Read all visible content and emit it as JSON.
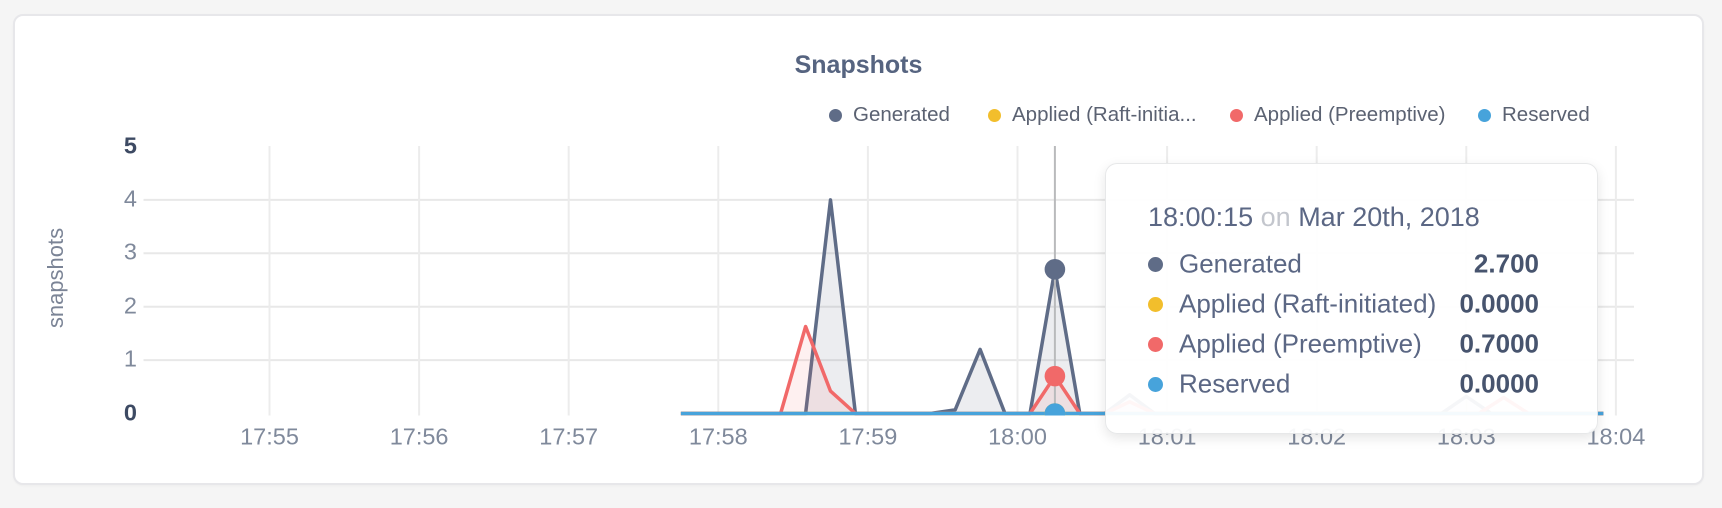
{
  "page": {
    "background": "#f5f5f5"
  },
  "card": {
    "background": "#ffffff",
    "border_color": "#e7e7ea"
  },
  "chart_data": {
    "type": "area",
    "title": "Snapshots",
    "ylabel": "snapshots",
    "xlabel": "",
    "ylim": [
      0,
      5
    ],
    "y_ticks": [
      0,
      1,
      2,
      3,
      4,
      5
    ],
    "x_ticks": [
      {
        "label": "17:55",
        "minute": 0
      },
      {
        "label": "17:56",
        "minute": 1
      },
      {
        "label": "17:57",
        "minute": 2
      },
      {
        "label": "17:58",
        "minute": 3
      },
      {
        "label": "17:59",
        "minute": 4
      },
      {
        "label": "18:00",
        "minute": 5
      },
      {
        "label": "18:01",
        "minute": 6
      },
      {
        "label": "18:02",
        "minute": 7
      },
      {
        "label": "18:03",
        "minute": 8
      },
      {
        "label": "18:04",
        "minute": 9
      }
    ],
    "grid": true,
    "legend_position": "top-right",
    "series": [
      {
        "name": "Generated",
        "legend_label": "Generated",
        "color": "#5F6C87",
        "fill_opacity": 0.12,
        "points": [
          [
            165,
            0
          ],
          [
            215,
            0
          ],
          [
            225,
            4
          ],
          [
            235,
            0
          ],
          [
            265,
            0
          ],
          [
            275,
            0.07
          ],
          [
            285,
            1.2
          ],
          [
            295,
            0
          ],
          [
            305,
            0
          ],
          [
            315,
            2.7
          ],
          [
            325,
            0
          ],
          [
            335,
            0
          ],
          [
            345,
            0.35
          ],
          [
            355,
            0
          ],
          [
            470,
            0
          ],
          [
            480,
            0.32
          ],
          [
            490,
            0
          ],
          [
            535,
            0
          ]
        ]
      },
      {
        "name": "Applied (Raft-initiated)",
        "legend_label": "Applied (Raft-initia...",
        "color": "#F2BE2C",
        "fill_opacity": 0.1,
        "points": [
          [
            165,
            0
          ],
          [
            535,
            0
          ]
        ]
      },
      {
        "name": "Applied (Preemptive)",
        "legend_label": "Applied (Preemptive)",
        "color": "#F16969",
        "fill_opacity": 0.1,
        "points": [
          [
            165,
            0
          ],
          [
            205,
            0
          ],
          [
            215,
            1.63
          ],
          [
            225,
            0.42
          ],
          [
            235,
            0
          ],
          [
            305,
            0
          ],
          [
            315,
            0.7
          ],
          [
            325,
            0
          ],
          [
            335,
            0
          ],
          [
            345,
            0.22
          ],
          [
            355,
            0
          ],
          [
            485,
            0
          ],
          [
            495,
            0.3
          ],
          [
            505,
            0
          ],
          [
            535,
            0
          ]
        ]
      },
      {
        "name": "Reserved",
        "legend_label": "Reserved",
        "color": "#47A3DB",
        "fill_opacity": 0.1,
        "points": [
          [
            165,
            0
          ],
          [
            535,
            0
          ]
        ]
      }
    ],
    "hover": {
      "time_label": "18:00:15",
      "time_seconds": 315,
      "values": [
        2.7,
        0,
        0.7,
        0
      ]
    }
  },
  "tooltip": {
    "time": "18:00:15",
    "conjunction": "on",
    "date": "Mar 20th, 2018",
    "rows": [
      {
        "label": "Generated",
        "value": "2.700",
        "color": "#5F6C87"
      },
      {
        "label": "Applied (Raft-initiated)",
        "value": "0.0000",
        "color": "#F2BE2C"
      },
      {
        "label": "Applied (Preemptive)",
        "value": "0.7000",
        "color": "#F16969"
      },
      {
        "label": "Reserved",
        "value": "0.0000",
        "color": "#47A3DB"
      }
    ]
  },
  "colors": {
    "axis_tick": "#7f899b",
    "axis_tick_strong": "#3d4a63",
    "grid_horizontal": "#e8e8e8",
    "grid_vertical": "#ececec",
    "crosshair": "#b9babc",
    "title": "#566480",
    "legend_text": "#5b6272"
  }
}
